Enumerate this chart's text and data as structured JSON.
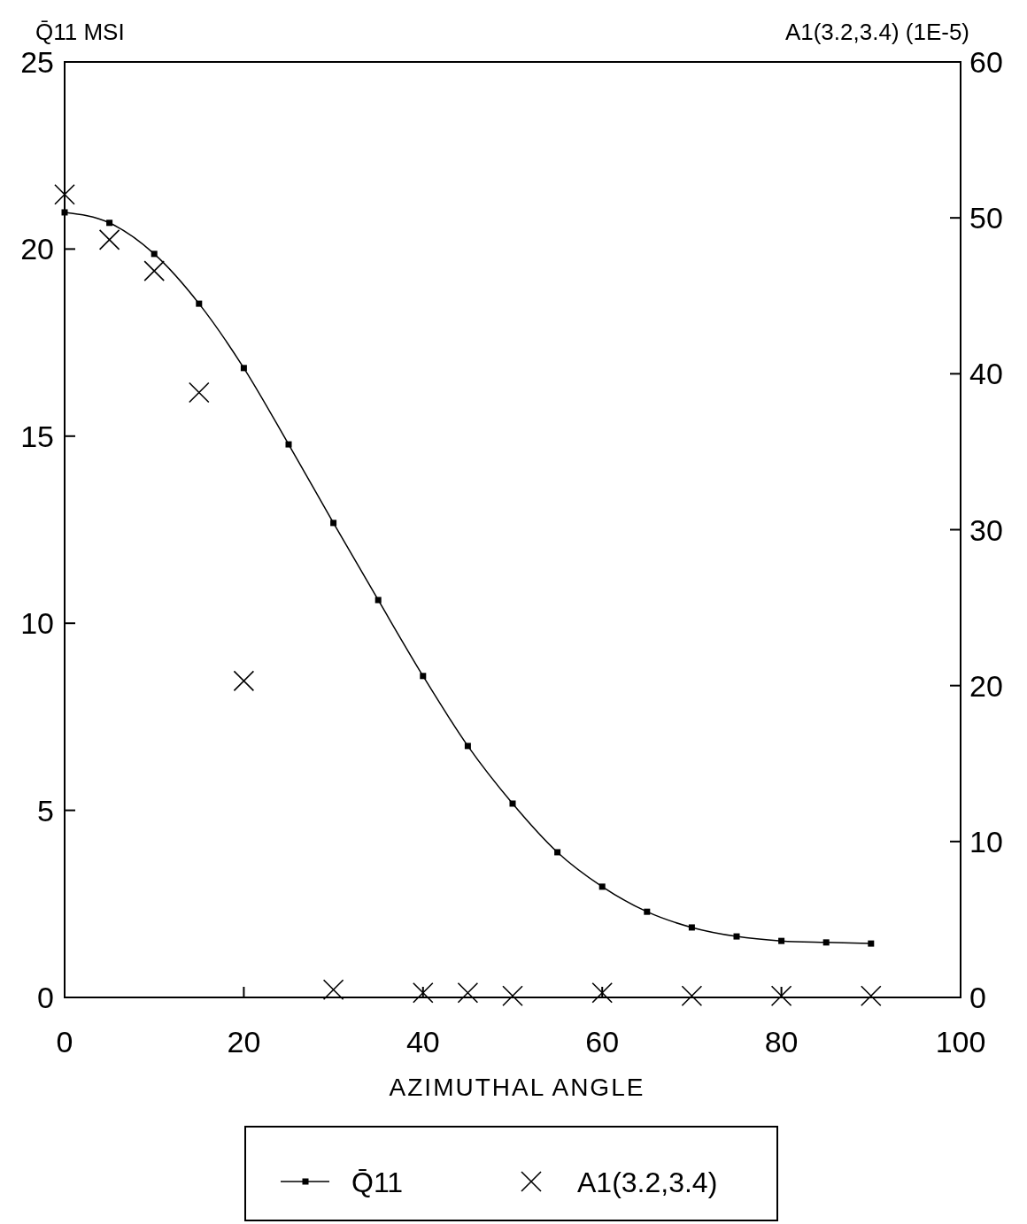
{
  "chart_data": {
    "type": "line",
    "ylabel": "Q̄11 MSI",
    "y2label": "A1(3.2,3.4) (1E-5)",
    "xlabel": "AZIMUTHAL ANGLE",
    "x": [
      0,
      5,
      10,
      15,
      20,
      25,
      30,
      35,
      40,
      45,
      50,
      55,
      60,
      65,
      70,
      75,
      80,
      85,
      90
    ],
    "series": [
      {
        "name": "Q̄11",
        "marker": "square",
        "color": "#000000",
        "values": [
          20.98,
          20.7,
          19.87,
          18.54,
          16.82,
          14.78,
          12.68,
          10.62,
          8.59,
          6.72,
          5.18,
          3.88,
          2.96,
          2.29,
          1.87,
          1.63,
          1.51,
          1.47,
          1.44
        ]
      },
      {
        "name": "A1(3.2,3.4)",
        "type": "scatter",
        "marker": "cross",
        "axis": "y2",
        "color": "#000000",
        "x": [
          0,
          5,
          10,
          15,
          20,
          30,
          40,
          45,
          50,
          60,
          70,
          80,
          90
        ],
        "values": [
          51.5,
          48.6,
          46.6,
          38.8,
          20.3,
          0.5,
          0.3,
          0.3,
          0.1,
          0.3,
          0.1,
          0.1,
          0.1
        ]
      }
    ],
    "xlim": [
      0,
      100
    ],
    "xticks": [
      0,
      20,
      40,
      60,
      80,
      100
    ],
    "ylim": [
      0,
      25
    ],
    "yticks": [
      0,
      5,
      10,
      15,
      20,
      25
    ],
    "y2lim": [
      0,
      60
    ],
    "y2ticks": [
      0,
      10,
      20,
      30,
      40,
      50,
      60
    ],
    "grid": false,
    "legend": "bottom"
  }
}
